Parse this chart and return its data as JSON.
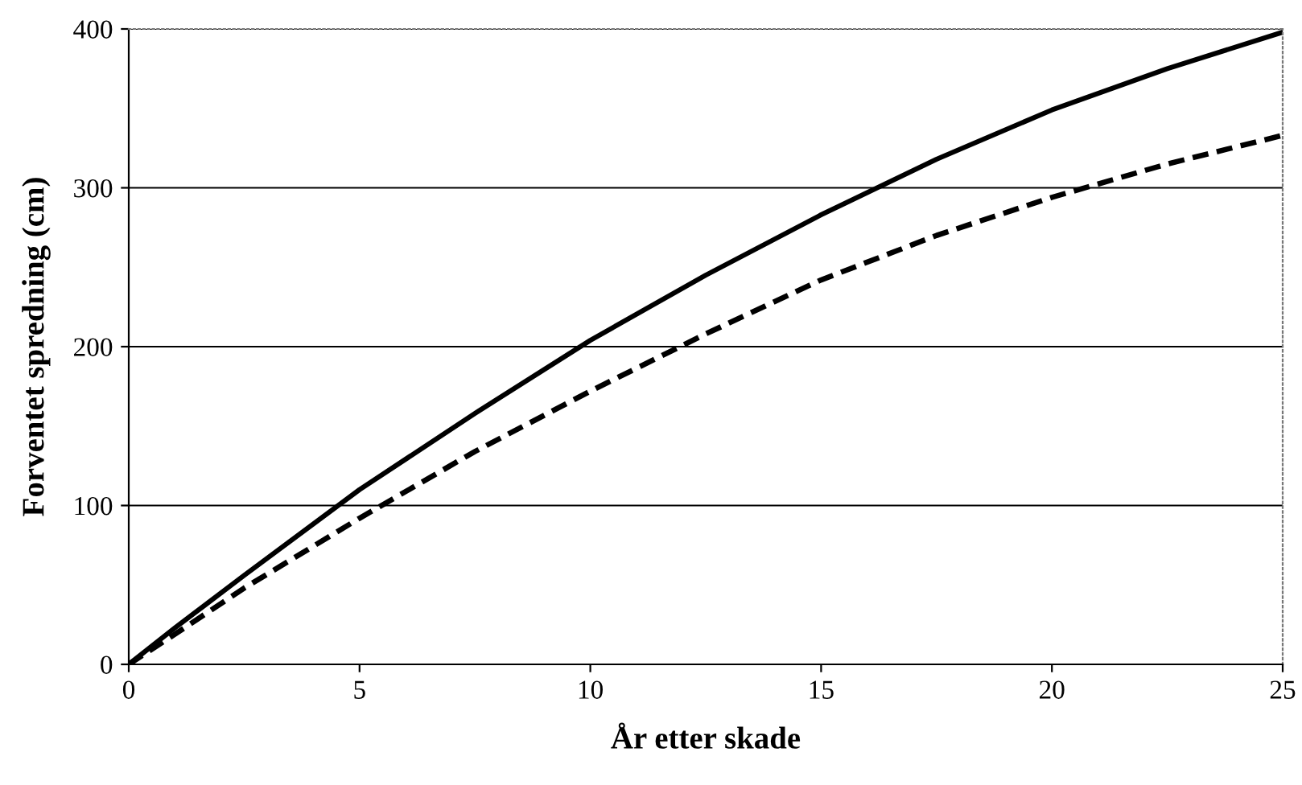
{
  "chart_data": {
    "type": "line",
    "xlabel": "År etter skade",
    "ylabel": "Forventet spredning (cm)",
    "xlim": [
      0,
      25
    ],
    "xticks": [
      0,
      5,
      10,
      15,
      20,
      25
    ],
    "ylim": [
      0,
      400
    ],
    "yticks": [
      0,
      100,
      200,
      300,
      400
    ],
    "grid": "y",
    "x": [
      0,
      1,
      2.5,
      5,
      7.5,
      10,
      12.5,
      15,
      17.5,
      20,
      22.5,
      25
    ],
    "series": [
      {
        "color": "#000000",
        "line_style": "solid",
        "values": [
          0,
          23,
          56,
          110,
          158,
          204,
          245,
          283,
          318,
          349,
          375,
          398
        ]
      },
      {
        "color": "#000000",
        "line_style": "dashed",
        "values": [
          0,
          19,
          48,
          92,
          134,
          172,
          208,
          242,
          270,
          294,
          315,
          333
        ]
      }
    ]
  }
}
